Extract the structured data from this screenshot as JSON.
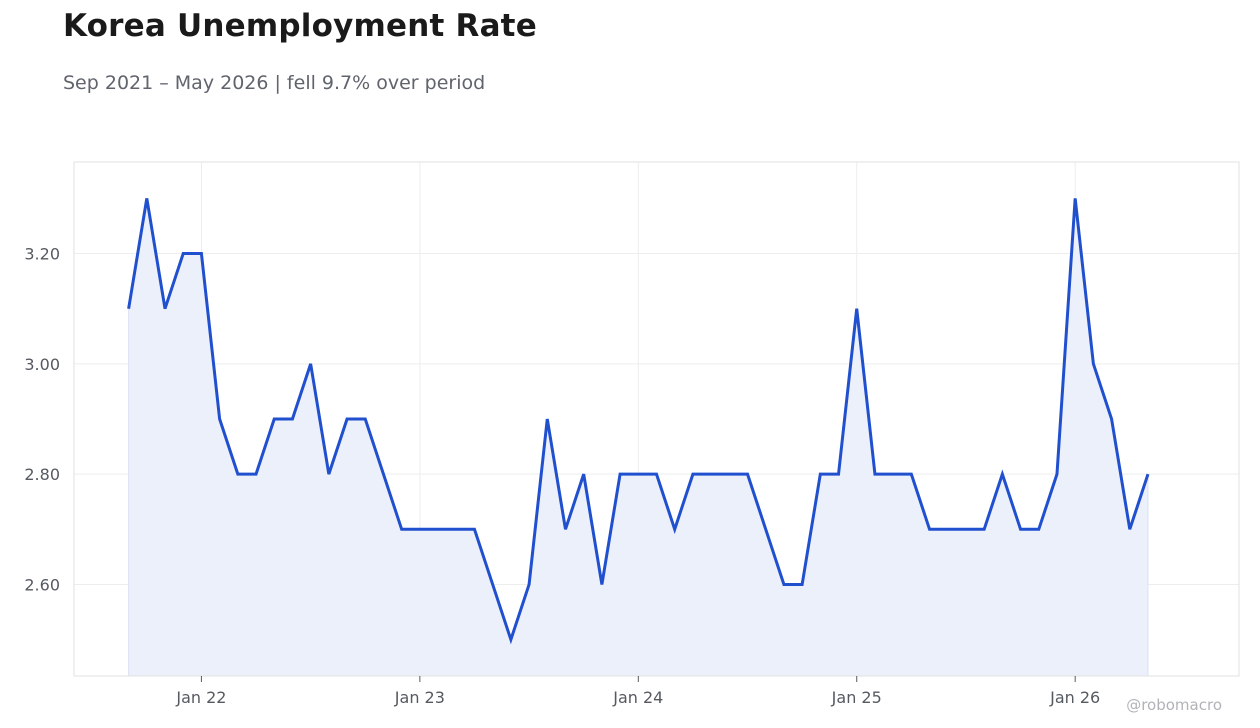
{
  "header": {
    "title": "Korea Unemployment Rate",
    "subtitle": "Sep 2021 – May 2026 | fell 9.7% over period"
  },
  "watermark": "@robomacro",
  "colors": {
    "line": "#2150cf",
    "fill": "#ecf0fb",
    "grid": "#ededed",
    "frame": "#e2e2e2"
  },
  "chart_data": {
    "type": "area",
    "title": "Korea Unemployment Rate",
    "subtitle": "Sep 2021 – May 2026 | fell 9.7% over period",
    "xlabel": "",
    "ylabel": "",
    "grid": true,
    "legend": "none",
    "x_start": "2021-09",
    "x_end": "2026-05",
    "xlim": [
      "2021-06",
      "2026-10"
    ],
    "ylim": [
      2.434,
      3.366
    ],
    "x_ticks": [
      {
        "date": "2022-01",
        "label": "Jan 22"
      },
      {
        "date": "2023-01",
        "label": "Jan 23"
      },
      {
        "date": "2024-01",
        "label": "Jan 24"
      },
      {
        "date": "2025-01",
        "label": "Jan 25"
      },
      {
        "date": "2026-01",
        "label": "Jan 26"
      }
    ],
    "y_ticks": [
      {
        "value": 2.6,
        "label": "2.60"
      },
      {
        "value": 2.8,
        "label": "2.80"
      },
      {
        "value": 3.0,
        "label": "3.00"
      },
      {
        "value": 3.2,
        "label": "3.20"
      }
    ],
    "series": [
      {
        "values": [
          3.1,
          3.3,
          3.1,
          3.2,
          3.2,
          2.9,
          2.8,
          2.8,
          2.9,
          2.9,
          3.0,
          2.8,
          2.9,
          2.9,
          2.8,
          2.7,
          2.7,
          2.7,
          2.7,
          2.7,
          2.6,
          2.5,
          2.6,
          2.9,
          2.7,
          2.8,
          2.6,
          2.8,
          2.8,
          2.8,
          2.7,
          2.8,
          2.8,
          2.8,
          2.8,
          2.7,
          2.6,
          2.6,
          2.8,
          2.8,
          3.1,
          2.8,
          2.8,
          2.8,
          2.7,
          2.7,
          2.7,
          2.7,
          2.8,
          2.7,
          2.7,
          2.8,
          3.3,
          3.0,
          2.9,
          2.7,
          2.8
        ]
      }
    ]
  }
}
